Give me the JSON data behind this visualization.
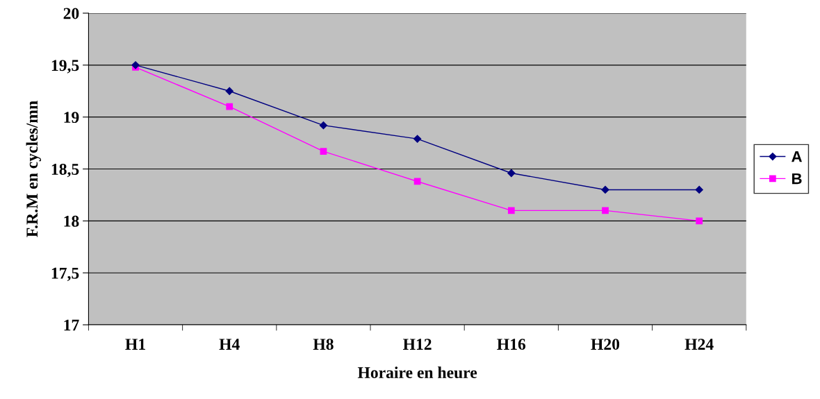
{
  "chart_data": {
    "type": "line",
    "xlabel": "Horaire en heure",
    "ylabel": "F.R.M en cycles/mn",
    "categories": [
      "H1",
      "H4",
      "H8",
      "H12",
      "H16",
      "H20",
      "H24"
    ],
    "series": [
      {
        "name": "A",
        "color": "#000080",
        "marker": "diamond",
        "values": [
          19.5,
          19.25,
          18.92,
          18.79,
          18.46,
          18.3,
          18.3
        ]
      },
      {
        "name": "B",
        "color": "#ff00ff",
        "marker": "square",
        "values": [
          19.48,
          19.1,
          18.67,
          18.38,
          18.1,
          18.1,
          18.0
        ]
      }
    ],
    "ylim": [
      17,
      20
    ],
    "yticks": [
      {
        "value": 17,
        "label": "17"
      },
      {
        "value": 17.5,
        "label": "17,5"
      },
      {
        "value": 18,
        "label": "18"
      },
      {
        "value": 18.5,
        "label": "18,5"
      },
      {
        "value": 19,
        "label": "19"
      },
      {
        "value": 19.5,
        "label": "19,5"
      },
      {
        "value": 20,
        "label": "20"
      }
    ],
    "grid": "y",
    "legend": "right",
    "line_style": "solid"
  }
}
